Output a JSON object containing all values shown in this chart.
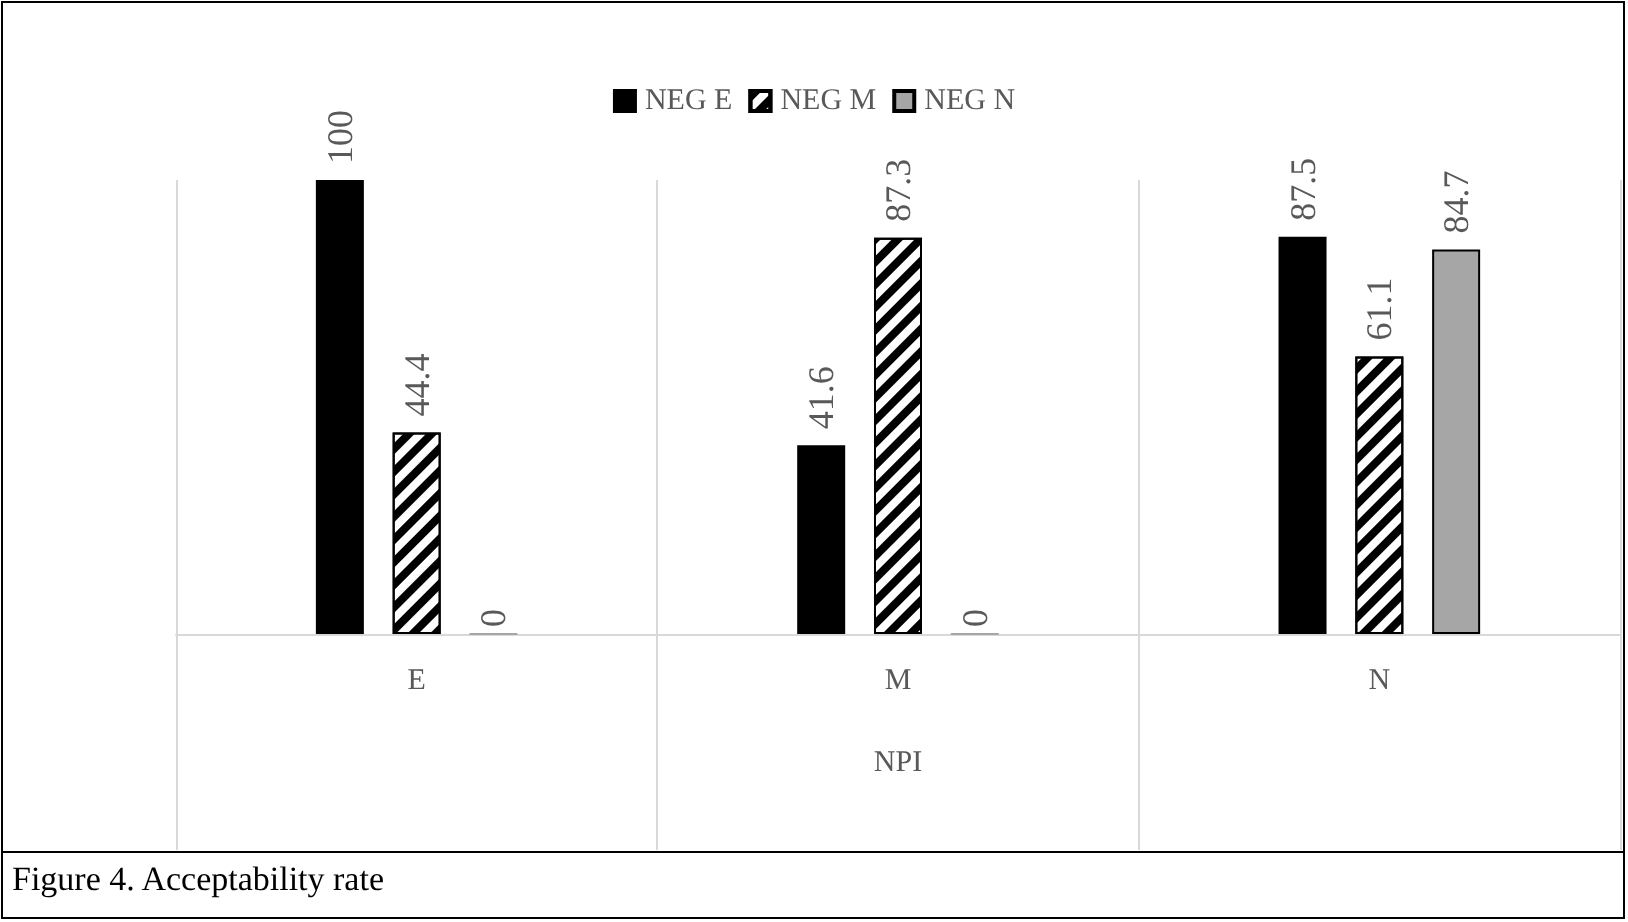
{
  "chart_data": {
    "type": "bar",
    "categories": [
      "E",
      "M",
      "N"
    ],
    "xlabel": "NPI",
    "series": [
      {
        "name": "NEG E",
        "color": "#000000",
        "values": [
          100,
          41.6,
          87.5
        ]
      },
      {
        "name": "NEG M",
        "color": "#000000",
        "values": [
          44.4,
          87.3,
          61.1
        ]
      },
      {
        "name": "NEG N",
        "color": "#a6a6a6",
        "values": [
          0,
          0,
          84.7
        ]
      }
    ],
    "tick_labels": "x",
    "data_labels": true,
    "legend": "top",
    "grid": "x",
    "annotations": [
      "Figure 4. Acceptability rate"
    ]
  }
}
